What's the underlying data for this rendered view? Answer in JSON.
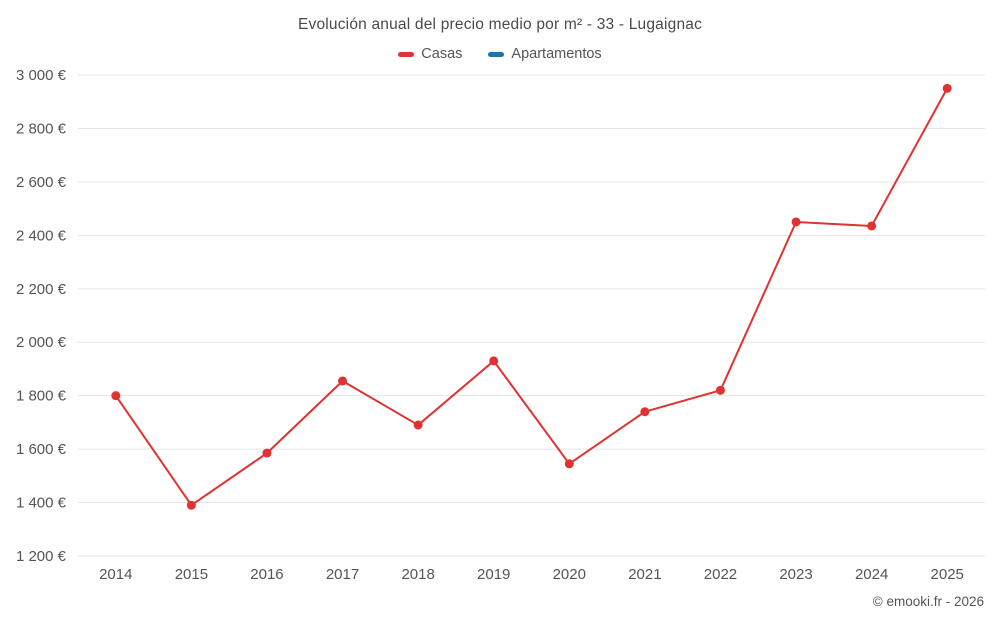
{
  "chart_data": {
    "type": "line",
    "title": "Evolución anual del precio medio por m² - 33 - Lugaignac",
    "x": [
      "2014",
      "2015",
      "2016",
      "2017",
      "2018",
      "2019",
      "2020",
      "2021",
      "2022",
      "2023",
      "2024",
      "2025"
    ],
    "series": [
      {
        "name": "Casas",
        "color": "#e03232",
        "values": [
          1800,
          1390,
          1585,
          1855,
          1690,
          1930,
          1545,
          1740,
          1820,
          2450,
          2435,
          2950
        ]
      },
      {
        "name": "Apartamentos",
        "color": "#1878a8",
        "values": []
      }
    ],
    "ylim": [
      1200,
      3000
    ],
    "y_ticks": [
      {
        "value": 1200,
        "label": "1 200 €"
      },
      {
        "value": 1400,
        "label": "1 400 €"
      },
      {
        "value": 1600,
        "label": "1 600 €"
      },
      {
        "value": 1800,
        "label": "1 800 €"
      },
      {
        "value": 2000,
        "label": "2 000 €"
      },
      {
        "value": 2200,
        "label": "2 200 €"
      },
      {
        "value": 2400,
        "label": "2 400 €"
      },
      {
        "value": 2600,
        "label": "2 600 €"
      },
      {
        "value": 2800,
        "label": "2 800 €"
      },
      {
        "value": 3000,
        "label": "3 000 €"
      }
    ],
    "grid": "horizontal",
    "legend_position": "top",
    "xlabel": "",
    "ylabel": ""
  },
  "footer": {
    "copyright": "© emooki.fr - 2026"
  },
  "colors": {
    "grid": "#e6e6e6",
    "axis_text": "#555555",
    "title_text": "#4a4a4a"
  }
}
